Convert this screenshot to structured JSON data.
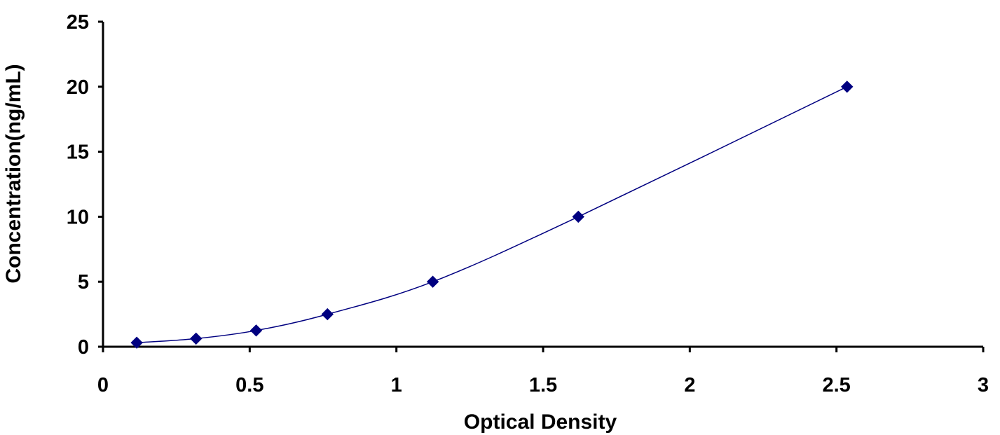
{
  "chart_data": {
    "type": "scatter",
    "title": "",
    "xlabel": "Optical Density",
    "ylabel": "Concentration(ng/mL)",
    "xlim": [
      0,
      3
    ],
    "ylim": [
      0,
      25
    ],
    "x_ticks": [
      0,
      0.5,
      1,
      1.5,
      2,
      2.5,
      3
    ],
    "y_ticks": [
      0,
      5,
      10,
      15,
      20,
      25
    ],
    "x_tick_labels": [
      "0",
      "0.5",
      "1",
      "1.5",
      "2",
      "2.5",
      "3"
    ],
    "y_tick_labels": [
      "0",
      "5",
      "10",
      "15",
      "20",
      "25"
    ],
    "grid": false,
    "legend": "none",
    "series": [
      {
        "marker": "diamond",
        "line": "smooth",
        "color": "#000080",
        "x": [
          0.115,
          0.317,
          0.522,
          0.765,
          1.124,
          1.62,
          2.536
        ],
        "y": [
          0.313,
          0.625,
          1.25,
          2.5,
          5,
          10,
          20
        ]
      }
    ]
  }
}
